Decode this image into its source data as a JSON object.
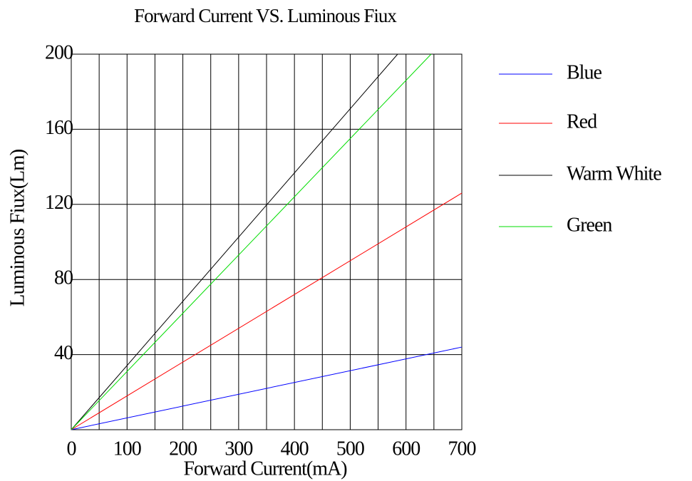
{
  "chart_data": {
    "type": "line",
    "title": "Forward Current VS. Luminous Fiux",
    "x_label": "Forward Current(mA)",
    "y_label": "Luminous Fiux(Lm)",
    "series": [
      {
        "name": "Blue",
        "color": "#0000ff",
        "x": [
          0,
          700
        ],
        "values": [
          0,
          44
        ]
      },
      {
        "name": "Red",
        "color": "#ff0000",
        "x": [
          0,
          700
        ],
        "values": [
          0,
          126
        ]
      },
      {
        "name": "Warm White",
        "color": "#000000",
        "x": [
          0,
          585
        ],
        "values": [
          0,
          200
        ]
      },
      {
        "name": "Green",
        "color": "#00dd00",
        "x": [
          0,
          645
        ],
        "values": [
          0,
          200
        ]
      }
    ],
    "xlim": [
      0,
      700
    ],
    "xticks": [
      0,
      100,
      200,
      300,
      400,
      500,
      600,
      700
    ],
    "ylim": [
      0,
      200
    ],
    "yticks": [
      40,
      80,
      120,
      160,
      200
    ],
    "grid": true,
    "legend": "right"
  }
}
